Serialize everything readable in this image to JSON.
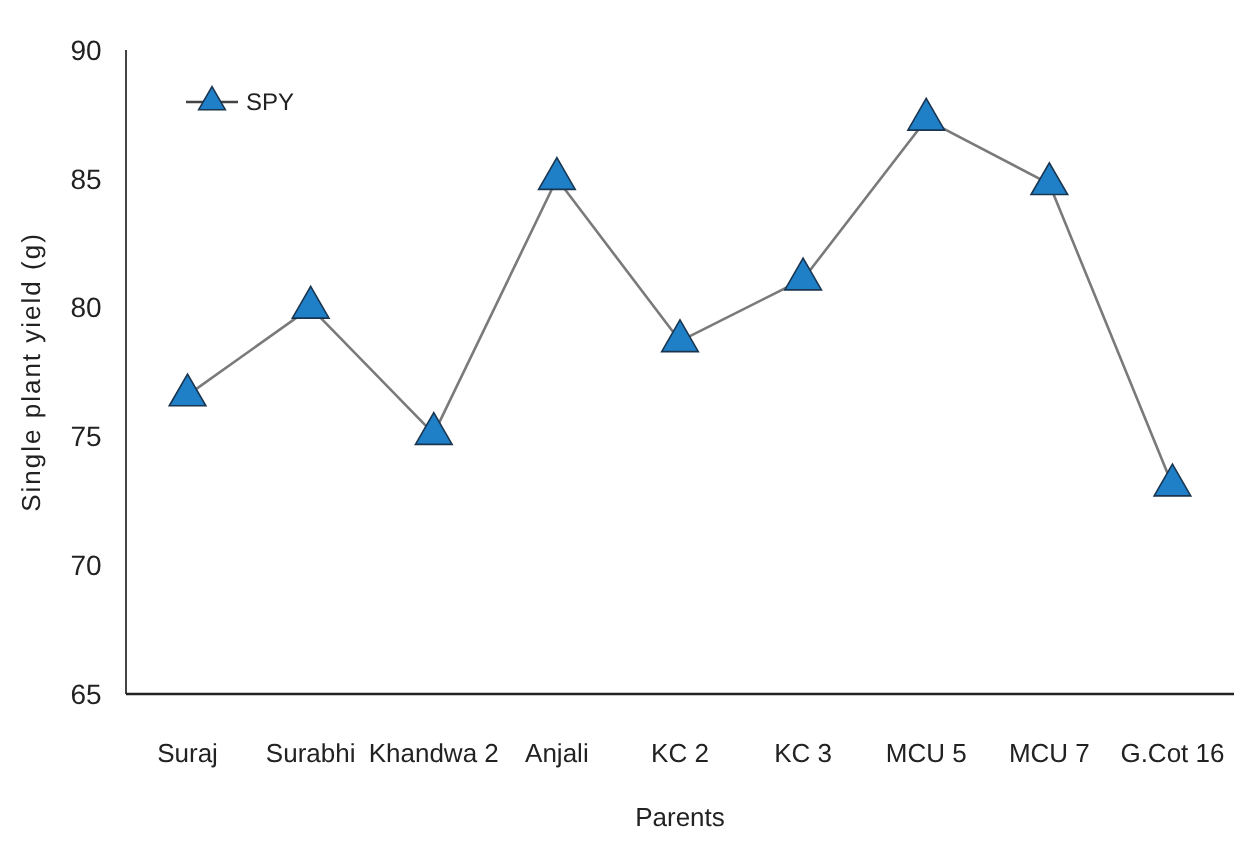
{
  "chart_data": {
    "type": "line",
    "xlabel": "Parents",
    "ylabel": "Single plant yield (g)",
    "categories": [
      "Suraj",
      "Surabhi",
      "Khandwa 2",
      "Anjali",
      "KC 2",
      "KC 3",
      "MCU 5",
      "MCU 7",
      "G.Cot 16"
    ],
    "series": [
      {
        "name": "SPY",
        "color": "#1f80c8",
        "values": [
          76.6,
          80.0,
          75.1,
          85.0,
          78.7,
          81.1,
          87.3,
          84.8,
          73.1
        ]
      }
    ],
    "ylim": [
      65,
      90
    ],
    "yticks": [
      65,
      70,
      75,
      80,
      85,
      90
    ],
    "grid": false,
    "legend": "top left",
    "marker": "triangle",
    "line_style": "solid"
  }
}
